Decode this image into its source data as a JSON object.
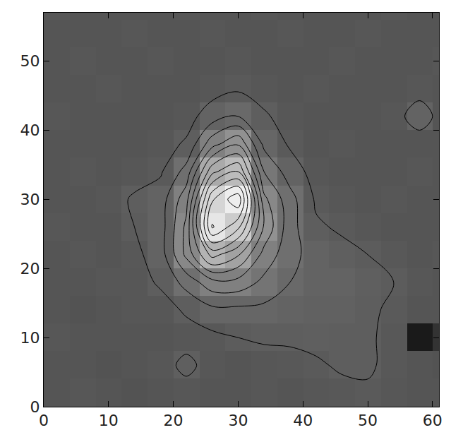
{
  "chart_data": {
    "type": "heatmap",
    "x": [
      2,
      6,
      10,
      14,
      18,
      22,
      26,
      30,
      34,
      38,
      42,
      46,
      50,
      54,
      58,
      62
    ],
    "y": [
      2,
      6,
      10,
      14,
      18,
      22,
      26,
      30,
      34,
      38,
      42,
      46,
      50,
      54,
      58
    ],
    "z": [
      [
        0,
        1,
        0,
        -1,
        0,
        1,
        0,
        0,
        1,
        0,
        1,
        2,
        3,
        1,
        0,
        0
      ],
      [
        0,
        0,
        -1,
        0,
        1,
        6,
        1,
        0,
        1,
        2,
        3,
        5,
        5,
        2,
        0,
        -1
      ],
      [
        1,
        0,
        0,
        0,
        0,
        1,
        2,
        4,
        5,
        5,
        6,
        5,
        5,
        2,
        -35,
        -20
      ],
      [
        0,
        -1,
        0,
        1,
        1,
        5,
        10,
        10,
        10,
        8,
        7,
        7,
        5,
        3,
        0,
        0
      ],
      [
        0,
        0,
        1,
        1,
        5,
        15,
        25,
        25,
        18,
        12,
        8,
        8,
        6,
        4,
        1,
        0
      ],
      [
        0,
        1,
        0,
        2,
        8,
        30,
        55,
        45,
        25,
        15,
        8,
        6,
        4,
        2,
        0,
        1
      ],
      [
        1,
        0,
        0,
        4,
        8,
        30,
        85,
        70,
        35,
        15,
        5,
        3,
        1,
        0,
        0,
        0
      ],
      [
        0,
        0,
        1,
        5,
        8,
        25,
        75,
        90,
        30,
        15,
        3,
        1,
        0,
        1,
        0,
        0
      ],
      [
        0,
        1,
        0,
        1,
        3,
        15,
        50,
        60,
        20,
        8,
        1,
        0,
        0,
        0,
        1,
        0
      ],
      [
        0,
        0,
        0,
        0,
        1,
        5,
        25,
        35,
        10,
        3,
        0,
        1,
        0,
        0,
        0,
        0
      ],
      [
        1,
        0,
        0,
        0,
        0,
        1,
        8,
        12,
        5,
        1,
        0,
        0,
        0,
        1,
        8,
        0
      ],
      [
        0,
        0,
        1,
        0,
        0,
        0,
        1,
        3,
        1,
        0,
        1,
        0,
        0,
        0,
        1,
        0
      ],
      [
        0,
        1,
        0,
        0,
        1,
        0,
        0,
        1,
        0,
        0,
        0,
        1,
        0,
        0,
        0,
        1
      ],
      [
        0,
        0,
        0,
        1,
        0,
        0,
        1,
        0,
        0,
        1,
        0,
        0,
        1,
        0,
        0,
        0
      ],
      [
        1,
        0,
        0,
        0,
        0,
        1,
        0,
        0,
        1,
        0,
        0,
        0,
        0,
        1,
        0,
        0
      ]
    ],
    "zlim": [
      -50,
      100
    ],
    "contour_levels": {
      "start": 4,
      "end": 100,
      "size": 8
    },
    "xlim": [
      0,
      61
    ],
    "ylim": [
      0,
      57
    ],
    "xticks": [
      0,
      10,
      20,
      30,
      40,
      50,
      60
    ],
    "yticks": [
      0,
      10,
      20,
      30,
      40,
      50
    ],
    "grid": false
  }
}
